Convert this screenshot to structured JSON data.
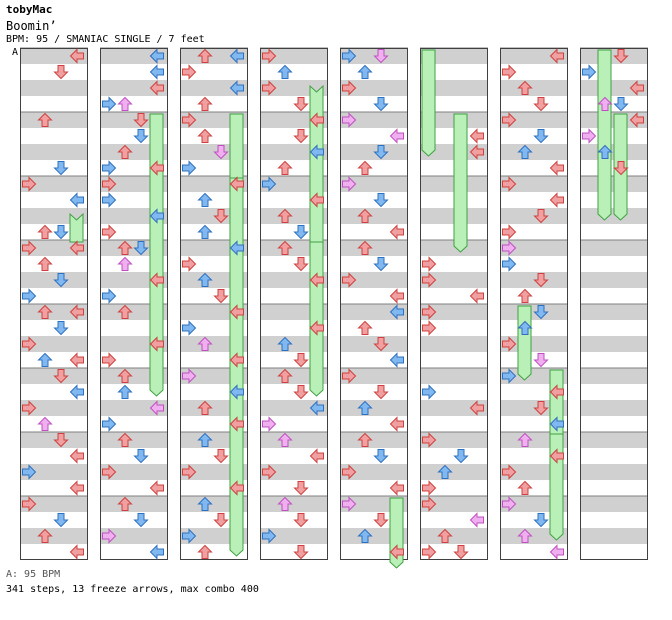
{
  "header": {
    "artist": "tobyMac",
    "song": "Boomin’",
    "info": "BPM: 95 / SMANIAC SINGLE / 7 feet",
    "marker": "A"
  },
  "footer": {
    "bpm_line": "A: 95 BPM",
    "summary": "341 steps, 13 freeze arrows, max combo 400"
  },
  "colors": {
    "quarter": "#f0a0a0",
    "eighth": "#80b8f0",
    "sixteenth": "#f0b0f0",
    "freeze": "#b8f0b8",
    "stripe": "#d0d0d0"
  },
  "layout": {
    "columns": 8,
    "measures_per_column": 8
  },
  "notes": [
    [
      [
        0,
        0,
        3,
        1
      ],
      [
        0,
        1,
        2,
        1
      ],
      [
        1,
        0,
        1,
        1
      ],
      [
        1,
        3,
        2,
        2
      ],
      [
        2,
        0,
        0,
        1
      ],
      [
        2,
        1,
        3,
        2
      ],
      [
        2,
        3,
        1,
        1
      ],
      [
        2,
        3,
        2,
        2
      ],
      [
        3,
        0,
        0,
        1
      ],
      [
        3,
        0,
        3,
        1
      ],
      [
        3,
        1,
        1,
        1
      ],
      [
        3,
        2,
        2,
        2
      ],
      [
        3,
        3,
        0,
        2
      ],
      [
        4,
        0,
        1,
        1
      ],
      [
        4,
        0,
        3,
        1
      ],
      [
        4,
        1,
        2,
        2
      ],
      [
        4,
        2,
        0,
        1
      ],
      [
        4,
        3,
        1,
        2
      ],
      [
        4,
        3,
        3,
        1
      ],
      [
        5,
        0,
        2,
        1
      ],
      [
        5,
        1,
        3,
        2
      ],
      [
        5,
        2,
        0,
        1
      ],
      [
        5,
        3,
        1,
        3
      ],
      [
        6,
        0,
        2,
        1
      ],
      [
        6,
        1,
        3,
        1
      ],
      [
        6,
        2,
        0,
        2
      ],
      [
        6,
        3,
        3,
        1
      ],
      [
        7,
        0,
        0,
        1
      ],
      [
        7,
        1,
        2,
        2
      ],
      [
        7,
        2,
        1,
        1
      ],
      [
        7,
        3,
        3,
        1
      ]
    ],
    [
      [
        0,
        0,
        3,
        1
      ],
      [
        0,
        0,
        3,
        2
      ],
      [
        0,
        1,
        3,
        2
      ],
      [
        0,
        2,
        3,
        1
      ],
      [
        0,
        3,
        0,
        2
      ],
      [
        0,
        3,
        1,
        3
      ],
      [
        1,
        0,
        2,
        1
      ],
      [
        1,
        1,
        2,
        2
      ],
      [
        1,
        2,
        1,
        1
      ],
      [
        1,
        3,
        0,
        2
      ],
      [
        1,
        3,
        3,
        1
      ],
      [
        2,
        0,
        0,
        1
      ],
      [
        2,
        1,
        0,
        2
      ],
      [
        2,
        2,
        3,
        2
      ],
      [
        2,
        3,
        0,
        1
      ],
      [
        3,
        0,
        2,
        2
      ],
      [
        3,
        0,
        1,
        1
      ],
      [
        3,
        1,
        1,
        3
      ],
      [
        3,
        2,
        3,
        1
      ],
      [
        3,
        3,
        0,
        2
      ],
      [
        4,
        0,
        1,
        1
      ],
      [
        4,
        2,
        3,
        1
      ],
      [
        4,
        3,
        0,
        1
      ],
      [
        5,
        0,
        1,
        1
      ],
      [
        5,
        1,
        1,
        2
      ],
      [
        5,
        2,
        3,
        3
      ],
      [
        5,
        3,
        0,
        2
      ],
      [
        6,
        0,
        1,
        1
      ],
      [
        6,
        1,
        2,
        2
      ],
      [
        6,
        2,
        0,
        1
      ],
      [
        6,
        3,
        3,
        1
      ],
      [
        7,
        0,
        1,
        1
      ],
      [
        7,
        1,
        2,
        2
      ],
      [
        7,
        2,
        0,
        3
      ],
      [
        7,
        3,
        3,
        2
      ]
    ],
    [
      [
        0,
        0,
        1,
        1
      ],
      [
        0,
        0,
        3,
        2
      ],
      [
        0,
        1,
        0,
        1
      ],
      [
        0,
        2,
        3,
        2
      ],
      [
        0,
        3,
        1,
        1
      ],
      [
        1,
        0,
        0,
        1
      ],
      [
        1,
        1,
        1,
        1
      ],
      [
        1,
        2,
        2,
        3
      ],
      [
        1,
        3,
        0,
        2
      ],
      [
        2,
        0,
        3,
        1
      ],
      [
        2,
        1,
        1,
        2
      ],
      [
        2,
        2,
        2,
        1
      ],
      [
        2,
        3,
        1,
        2
      ],
      [
        3,
        0,
        3,
        2
      ],
      [
        3,
        1,
        0,
        1
      ],
      [
        3,
        2,
        1,
        2
      ],
      [
        3,
        3,
        2,
        1
      ],
      [
        4,
        0,
        3,
        1
      ],
      [
        4,
        1,
        0,
        2
      ],
      [
        4,
        2,
        1,
        3
      ],
      [
        4,
        3,
        3,
        1
      ],
      [
        5,
        0,
        0,
        3
      ],
      [
        5,
        1,
        3,
        2
      ],
      [
        5,
        2,
        1,
        1
      ],
      [
        5,
        3,
        3,
        1
      ],
      [
        6,
        0,
        1,
        2
      ],
      [
        6,
        1,
        2,
        1
      ],
      [
        6,
        2,
        0,
        1
      ],
      [
        6,
        3,
        3,
        1
      ],
      [
        7,
        0,
        1,
        2
      ],
      [
        7,
        1,
        2,
        1
      ],
      [
        7,
        2,
        0,
        2
      ],
      [
        7,
        3,
        1,
        1
      ]
    ],
    [
      [
        0,
        0,
        0,
        1
      ],
      [
        0,
        1,
        1,
        2
      ],
      [
        0,
        2,
        0,
        1
      ],
      [
        0,
        3,
        2,
        1
      ],
      [
        1,
        0,
        3,
        1
      ],
      [
        1,
        1,
        2,
        1
      ],
      [
        1,
        2,
        3,
        2
      ],
      [
        1,
        3,
        1,
        1
      ],
      [
        2,
        0,
        0,
        2
      ],
      [
        2,
        1,
        3,
        1
      ],
      [
        2,
        2,
        1,
        1
      ],
      [
        2,
        3,
        2,
        2
      ],
      [
        3,
        0,
        1,
        1
      ],
      [
        3,
        1,
        2,
        1
      ],
      [
        3,
        2,
        3,
        1
      ],
      [
        4,
        1,
        3,
        1
      ],
      [
        4,
        2,
        1,
        2
      ],
      [
        4,
        3,
        2,
        1
      ],
      [
        5,
        0,
        1,
        1
      ],
      [
        5,
        1,
        2,
        1
      ],
      [
        5,
        2,
        3,
        2
      ],
      [
        5,
        3,
        0,
        3
      ],
      [
        6,
        0,
        1,
        3
      ],
      [
        6,
        1,
        3,
        1
      ],
      [
        6,
        2,
        0,
        1
      ],
      [
        6,
        3,
        2,
        1
      ],
      [
        7,
        0,
        1,
        3
      ],
      [
        7,
        1,
        2,
        1
      ],
      [
        7,
        2,
        0,
        2
      ],
      [
        7,
        3,
        2,
        1
      ]
    ],
    [
      [
        0,
        0,
        0,
        2
      ],
      [
        0,
        0,
        2,
        3
      ],
      [
        0,
        1,
        1,
        2
      ],
      [
        0,
        2,
        0,
        1
      ],
      [
        0,
        3,
        2,
        2
      ],
      [
        1,
        0,
        0,
        3
      ],
      [
        1,
        1,
        3,
        3
      ],
      [
        1,
        2,
        2,
        2
      ],
      [
        1,
        3,
        1,
        1
      ],
      [
        2,
        0,
        0,
        3
      ],
      [
        2,
        1,
        2,
        2
      ],
      [
        2,
        2,
        1,
        1
      ],
      [
        2,
        3,
        3,
        1
      ],
      [
        3,
        0,
        1,
        1
      ],
      [
        3,
        1,
        2,
        2
      ],
      [
        3,
        2,
        0,
        1
      ],
      [
        3,
        3,
        3,
        1
      ],
      [
        4,
        0,
        3,
        2
      ],
      [
        4,
        1,
        1,
        1
      ],
      [
        4,
        2,
        2,
        1
      ],
      [
        4,
        3,
        3,
        2
      ],
      [
        5,
        0,
        0,
        1
      ],
      [
        5,
        1,
        2,
        1
      ],
      [
        5,
        2,
        1,
        2
      ],
      [
        5,
        3,
        3,
        1
      ],
      [
        6,
        0,
        1,
        1
      ],
      [
        6,
        1,
        2,
        2
      ],
      [
        6,
        2,
        0,
        1
      ],
      [
        6,
        3,
        3,
        1
      ],
      [
        7,
        0,
        0,
        3
      ],
      [
        7,
        1,
        2,
        1
      ],
      [
        7,
        2,
        1,
        2
      ],
      [
        7,
        3,
        3,
        1
      ]
    ],
    [
      [
        1,
        1,
        3,
        1
      ],
      [
        1,
        2,
        3,
        1
      ],
      [
        3,
        1,
        0,
        1
      ],
      [
        3,
        2,
        0,
        1
      ],
      [
        3,
        3,
        3,
        1
      ],
      [
        4,
        0,
        0,
        1
      ],
      [
        4,
        1,
        0,
        1
      ],
      [
        5,
        1,
        0,
        2
      ],
      [
        5,
        2,
        3,
        1
      ],
      [
        6,
        0,
        0,
        1
      ],
      [
        6,
        1,
        2,
        2
      ],
      [
        6,
        2,
        1,
        2
      ],
      [
        6,
        3,
        0,
        1
      ],
      [
        7,
        0,
        0,
        1
      ],
      [
        7,
        1,
        3,
        3
      ],
      [
        7,
        2,
        1,
        1
      ],
      [
        7,
        3,
        0,
        1
      ],
      [
        7,
        3,
        2,
        1
      ]
    ],
    [
      [
        0,
        0,
        3,
        1
      ],
      [
        0,
        1,
        0,
        1
      ],
      [
        0,
        2,
        1,
        1
      ],
      [
        0,
        3,
        2,
        1
      ],
      [
        1,
        0,
        0,
        1
      ],
      [
        1,
        1,
        2,
        2
      ],
      [
        1,
        2,
        1,
        2
      ],
      [
        1,
        3,
        3,
        1
      ],
      [
        2,
        0,
        0,
        1
      ],
      [
        2,
        1,
        3,
        1
      ],
      [
        2,
        2,
        2,
        1
      ],
      [
        2,
        3,
        0,
        1
      ],
      [
        3,
        0,
        0,
        3
      ],
      [
        3,
        1,
        0,
        2
      ],
      [
        3,
        2,
        2,
        1
      ],
      [
        3,
        3,
        1,
        1
      ],
      [
        4,
        0,
        2,
        2
      ],
      [
        4,
        1,
        1,
        2
      ],
      [
        4,
        2,
        0,
        1
      ],
      [
        4,
        3,
        2,
        3
      ],
      [
        5,
        0,
        0,
        2
      ],
      [
        5,
        1,
        3,
        1
      ],
      [
        5,
        2,
        2,
        1
      ],
      [
        5,
        3,
        3,
        2
      ],
      [
        6,
        0,
        1,
        3
      ],
      [
        6,
        1,
        3,
        1
      ],
      [
        6,
        2,
        0,
        1
      ],
      [
        6,
        3,
        1,
        1
      ],
      [
        7,
        0,
        0,
        3
      ],
      [
        7,
        1,
        2,
        2
      ],
      [
        7,
        2,
        1,
        3
      ],
      [
        7,
        3,
        3,
        3
      ]
    ],
    [
      [
        0,
        0,
        2,
        1
      ],
      [
        0,
        1,
        0,
        2
      ],
      [
        0,
        2,
        3,
        1
      ],
      [
        0,
        3,
        1,
        3
      ],
      [
        0,
        3,
        2,
        2
      ],
      [
        1,
        0,
        3,
        1
      ],
      [
        1,
        1,
        0,
        3
      ],
      [
        1,
        2,
        1,
        2
      ],
      [
        1,
        3,
        2,
        1
      ]
    ]
  ],
  "freezes": [
    [
      [
        3,
        4,
        1,
        6
      ]
    ],
    [
      [
        1,
        4,
        5,
        1
      ]
    ],
    [
      [
        1,
        6,
        7,
        1
      ],
      [
        2,
        7,
        7,
        3
      ]
    ],
    [
      [
        4,
        3,
        5,
        1
      ],
      [
        3,
        7,
        0,
        2
      ],
      [
        3,
        6,
        4,
        1
      ]
    ],
    [
      [
        7,
        6,
        8,
        0
      ]
    ],
    [
      [
        0,
        0,
        1,
        2
      ],
      [
        1,
        2,
        2,
        4
      ]
    ],
    [
      [
        4,
        1,
        5,
        0
      ],
      [
        5,
        7,
        6,
        0
      ],
      [
        6,
        4,
        7,
        2
      ]
    ],
    [
      [
        0,
        1,
        2,
        2
      ],
      [
        1,
        2,
        2,
        2
      ]
    ]
  ]
}
